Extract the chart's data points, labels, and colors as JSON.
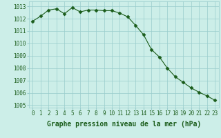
{
  "x": [
    0,
    1,
    2,
    3,
    4,
    5,
    6,
    7,
    8,
    9,
    10,
    11,
    12,
    13,
    14,
    15,
    16,
    17,
    18,
    19,
    20,
    21,
    22,
    23
  ],
  "y": [
    1011.8,
    1012.2,
    1012.7,
    1012.8,
    1012.4,
    1012.9,
    1012.55,
    1012.7,
    1012.7,
    1012.65,
    1012.65,
    1012.45,
    1012.15,
    1011.45,
    1010.7,
    1009.5,
    1008.9,
    1008.0,
    1007.3,
    1006.85,
    1006.4,
    1006.05,
    1005.75,
    1005.4
  ],
  "line_color": "#1a5c1a",
  "marker": "D",
  "marker_size": 2.5,
  "background_color": "#cceee8",
  "grid_color": "#99cccc",
  "xlabel": "Graphe pression niveau de la mer (hPa)",
  "ylim": [
    1004.8,
    1013.4
  ],
  "yticks": [
    1005,
    1006,
    1007,
    1008,
    1009,
    1010,
    1011,
    1012,
    1013
  ],
  "xticks": [
    0,
    1,
    2,
    3,
    4,
    5,
    6,
    7,
    8,
    9,
    10,
    11,
    12,
    13,
    14,
    15,
    16,
    17,
    18,
    19,
    20,
    21,
    22,
    23
  ],
  "tick_fontsize": 5.5,
  "xlabel_fontsize": 7.0,
  "xlabel_fontweight": "bold",
  "xlabel_color": "#1a5c1a",
  "tick_label_color": "#1a5c1a"
}
